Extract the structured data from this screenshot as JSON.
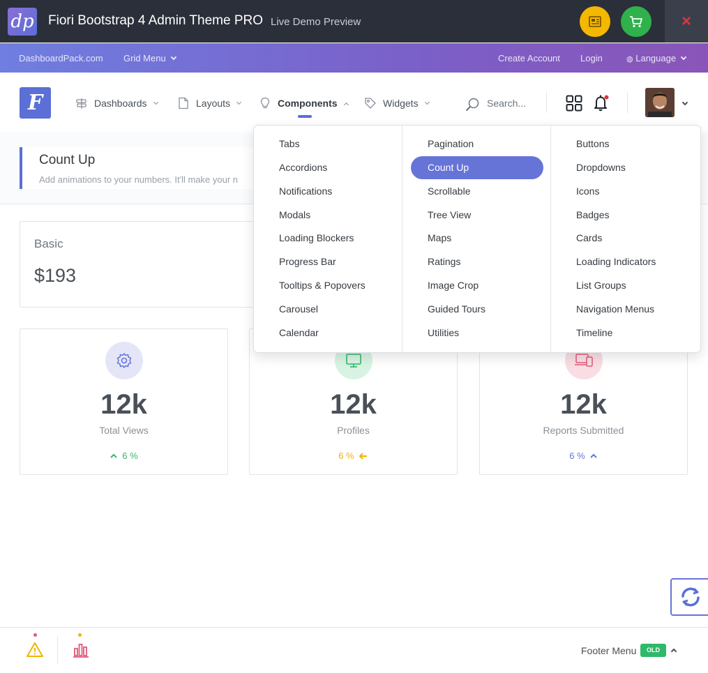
{
  "preview_bar": {
    "logo_text": "dp",
    "title": "Fiori Bootstrap 4 Admin Theme PRO",
    "subtitle": "Live Demo Preview",
    "close_symbol": "×"
  },
  "top_links": {
    "brand": "DashboardPack.com",
    "grid_menu": "Grid Menu",
    "create_account": "Create Account",
    "login": "Login",
    "language": "Language"
  },
  "header": {
    "brand_letter": "F",
    "nav": [
      {
        "label": "Dashboards",
        "icon": "signpost-icon"
      },
      {
        "label": "Layouts",
        "icon": "page-icon"
      },
      {
        "label": "Components",
        "icon": "lightbulb-icon"
      },
      {
        "label": "Widgets",
        "icon": "tag-icon"
      }
    ],
    "search_placeholder": "Search..."
  },
  "page": {
    "title": "Count Up",
    "description": "Add animations to your numbers. It'll make your n"
  },
  "basic_card": {
    "label": "Basic",
    "value": "$193"
  },
  "stats": [
    {
      "value": "12k",
      "label": "Total Views",
      "change": "6 %",
      "trend": "up",
      "color": "#2fb96a",
      "icon": "gear-icon",
      "icon_bg": "#e4e6f8"
    },
    {
      "value": "12k",
      "label": "Profiles",
      "change": "6 %",
      "trend": "left",
      "color": "#f0b400",
      "icon": "monitor-icon",
      "icon_bg": "#d9f3e3"
    },
    {
      "value": "12k",
      "label": "Reports Submitted",
      "change": "6 %",
      "trend": "up",
      "color": "#6674d8",
      "icon": "devices-icon",
      "icon_bg": "#fadde3"
    }
  ],
  "mega_menu": {
    "col1": [
      "Tabs",
      "Accordions",
      "Notifications",
      "Modals",
      "Loading Blockers",
      "Progress Bar",
      "Tooltips & Popovers",
      "Carousel",
      "Calendar"
    ],
    "col2": [
      "Pagination",
      "Count Up",
      "Scrollable",
      "Tree View",
      "Maps",
      "Ratings",
      "Image Crop",
      "Guided Tours",
      "Utilities"
    ],
    "col3": [
      "Buttons",
      "Dropdowns",
      "Icons",
      "Badges",
      "Cards",
      "Loading Indicators",
      "List Groups",
      "Navigation Menus",
      "Timeline"
    ],
    "active": "Count Up"
  },
  "footer": {
    "menu_label": "Footer Menu",
    "badge": "OLD"
  },
  "colors": {
    "accent": "#5b6fd6",
    "success": "#2fb96a",
    "warning": "#f0b400",
    "danger": "#e0353b"
  }
}
